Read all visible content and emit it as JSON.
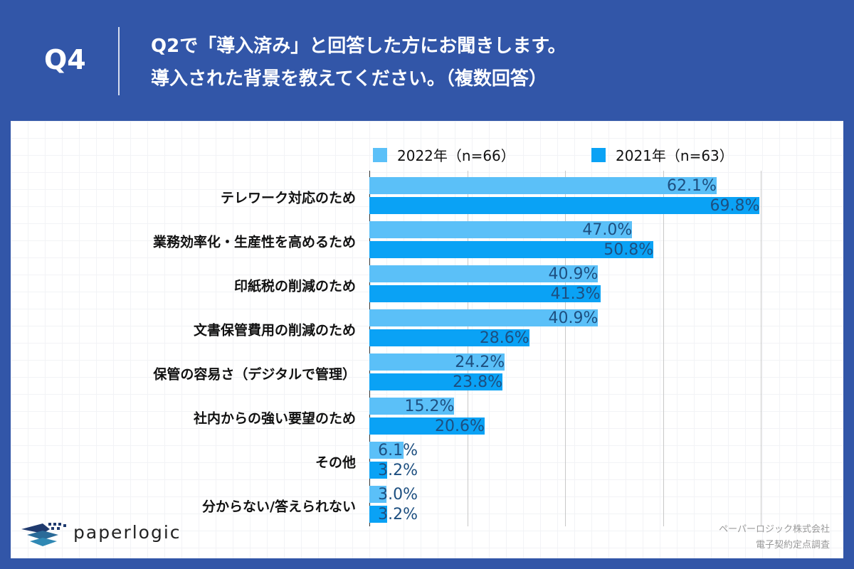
{
  "header": {
    "question_number": "Q4",
    "title_line1": "Q2で「導入済み」と回答した方にお聞きします。",
    "title_line2": "導入された背景を教えてください。（複数回答）"
  },
  "colors": {
    "background": "#3256a8",
    "series_2022": "#5bc0f8",
    "series_2021": "#0aa2f5",
    "value_label": "#1d4f80"
  },
  "chart_data": {
    "type": "bar",
    "orientation": "horizontal",
    "categories": [
      "テレワーク対応のため",
      "業務効率化・生産性を高めるため",
      "印紙税の削減のため",
      "文書保管費用の削減のため",
      "保管の容易さ（デジタルで管理）",
      "社内からの強い要望のため",
      "その他",
      "分からない/答えられない"
    ],
    "series": [
      {
        "name": "2022年（n=66）",
        "values": [
          62.1,
          47.0,
          40.9,
          40.9,
          24.2,
          15.2,
          6.1,
          3.0
        ],
        "labels": [
          "62.1%",
          "47.0%",
          "40.9%",
          "40.9%",
          "24.2%",
          "15.2%",
          "6.1%",
          "3.0%"
        ]
      },
      {
        "name": "2021年（n=63）",
        "values": [
          69.8,
          50.8,
          41.3,
          28.6,
          23.8,
          20.6,
          3.2,
          3.2
        ],
        "labels": [
          "69.8%",
          "50.8%",
          "41.3%",
          "28.6%",
          "23.8%",
          "20.6%",
          "3.2%",
          "3.2%"
        ]
      }
    ],
    "xlim": [
      0,
      70
    ],
    "grid": true,
    "legend": "top"
  },
  "footer": {
    "logo": "paperlogic",
    "credit_line1": "ペーパーロジック株式会社",
    "credit_line2": "電子契約定点調査"
  }
}
